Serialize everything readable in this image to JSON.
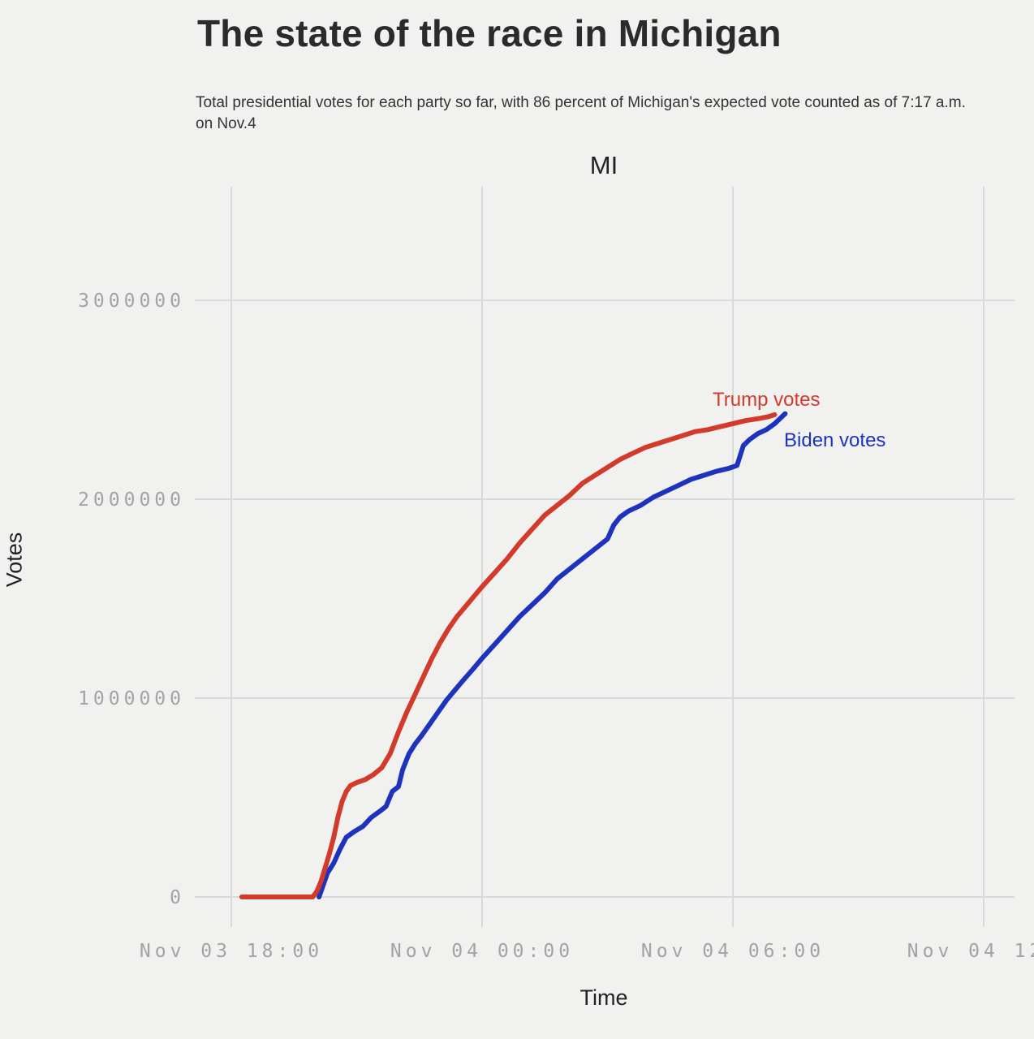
{
  "page": {
    "title": "The state of the race in Michigan",
    "subtitle": "Total presidential votes for each party so far, with 86 percent of Michigan's expected vote counted as of 7:17 a.m. on Nov.4"
  },
  "colors": {
    "background": "#f1f1ef",
    "grid": "#d9d9d9",
    "tick_text": "#a3a3a3",
    "trump_red": "#d23b2b",
    "biden_blue": "#1d33bd"
  },
  "chart_data": {
    "type": "line",
    "title": "MI",
    "xlabel": "Time",
    "ylabel": "Votes",
    "grid": true,
    "legend_position": "inline-annotations",
    "x_unit": "hours since Nov 03 18:00",
    "xlim": [
      -0.9,
      19.2
    ],
    "ylim": [
      0,
      3560000
    ],
    "x_ticks": [
      {
        "t": 0,
        "label": "Nov 03 18:00"
      },
      {
        "t": 6,
        "label": "Nov 04 00:00"
      },
      {
        "t": 12,
        "label": "Nov 04 06:00"
      },
      {
        "t": 18,
        "label": "Nov 04 12:"
      }
    ],
    "y_ticks": [
      {
        "v": 0,
        "label": "0"
      },
      {
        "v": 1000000,
        "label": "1000000"
      },
      {
        "v": 2000000,
        "label": "2000000"
      },
      {
        "v": 3000000,
        "label": "3000000"
      }
    ],
    "series": [
      {
        "name": "Trump votes",
        "color": "#d23b2b",
        "points": [
          [
            0.25,
            0
          ],
          [
            1.95,
            0
          ],
          [
            2.05,
            30000
          ],
          [
            2.15,
            80000
          ],
          [
            2.25,
            150000
          ],
          [
            2.35,
            220000
          ],
          [
            2.45,
            300000
          ],
          [
            2.55,
            400000
          ],
          [
            2.65,
            480000
          ],
          [
            2.75,
            530000
          ],
          [
            2.85,
            560000
          ],
          [
            3.0,
            575000
          ],
          [
            3.2,
            590000
          ],
          [
            3.4,
            615000
          ],
          [
            3.6,
            650000
          ],
          [
            3.8,
            720000
          ],
          [
            4.0,
            830000
          ],
          [
            4.2,
            930000
          ],
          [
            4.4,
            1020000
          ],
          [
            4.6,
            1110000
          ],
          [
            4.8,
            1200000
          ],
          [
            5.0,
            1280000
          ],
          [
            5.2,
            1350000
          ],
          [
            5.4,
            1410000
          ],
          [
            5.6,
            1460000
          ],
          [
            5.8,
            1510000
          ],
          [
            6.0,
            1560000
          ],
          [
            6.3,
            1630000
          ],
          [
            6.6,
            1700000
          ],
          [
            6.9,
            1780000
          ],
          [
            7.2,
            1850000
          ],
          [
            7.5,
            1920000
          ],
          [
            7.8,
            1970000
          ],
          [
            8.1,
            2020000
          ],
          [
            8.4,
            2080000
          ],
          [
            8.7,
            2120000
          ],
          [
            9.0,
            2160000
          ],
          [
            9.3,
            2200000
          ],
          [
            9.6,
            2230000
          ],
          [
            9.9,
            2260000
          ],
          [
            10.2,
            2280000
          ],
          [
            10.5,
            2300000
          ],
          [
            10.8,
            2320000
          ],
          [
            11.1,
            2340000
          ],
          [
            11.4,
            2350000
          ],
          [
            11.7,
            2365000
          ],
          [
            12.0,
            2380000
          ],
          [
            12.3,
            2395000
          ],
          [
            12.6,
            2405000
          ],
          [
            12.85,
            2415000
          ],
          [
            13.0,
            2425000
          ]
        ]
      },
      {
        "name": "Biden votes",
        "color": "#1d33bd",
        "points": [
          [
            2.1,
            0
          ],
          [
            2.2,
            60000
          ],
          [
            2.3,
            120000
          ],
          [
            2.45,
            170000
          ],
          [
            2.6,
            240000
          ],
          [
            2.75,
            300000
          ],
          [
            2.95,
            330000
          ],
          [
            3.15,
            355000
          ],
          [
            3.35,
            400000
          ],
          [
            3.55,
            430000
          ],
          [
            3.7,
            455000
          ],
          [
            3.85,
            530000
          ],
          [
            4.0,
            555000
          ],
          [
            4.1,
            640000
          ],
          [
            4.25,
            720000
          ],
          [
            4.4,
            770000
          ],
          [
            4.55,
            810000
          ],
          [
            4.75,
            870000
          ],
          [
            4.95,
            930000
          ],
          [
            5.15,
            990000
          ],
          [
            5.35,
            1040000
          ],
          [
            5.55,
            1090000
          ],
          [
            5.8,
            1150000
          ],
          [
            6.0,
            1200000
          ],
          [
            6.3,
            1270000
          ],
          [
            6.6,
            1340000
          ],
          [
            6.9,
            1410000
          ],
          [
            7.2,
            1470000
          ],
          [
            7.5,
            1530000
          ],
          [
            7.8,
            1600000
          ],
          [
            8.1,
            1650000
          ],
          [
            8.4,
            1700000
          ],
          [
            8.7,
            1750000
          ],
          [
            9.0,
            1800000
          ],
          [
            9.15,
            1870000
          ],
          [
            9.3,
            1910000
          ],
          [
            9.5,
            1940000
          ],
          [
            9.8,
            1970000
          ],
          [
            10.1,
            2010000
          ],
          [
            10.4,
            2040000
          ],
          [
            10.7,
            2070000
          ],
          [
            11.0,
            2100000
          ],
          [
            11.3,
            2120000
          ],
          [
            11.6,
            2140000
          ],
          [
            11.9,
            2155000
          ],
          [
            12.1,
            2170000
          ],
          [
            12.25,
            2270000
          ],
          [
            12.4,
            2300000
          ],
          [
            12.6,
            2330000
          ],
          [
            12.8,
            2350000
          ],
          [
            13.0,
            2380000
          ],
          [
            13.25,
            2430000
          ]
        ]
      }
    ]
  }
}
